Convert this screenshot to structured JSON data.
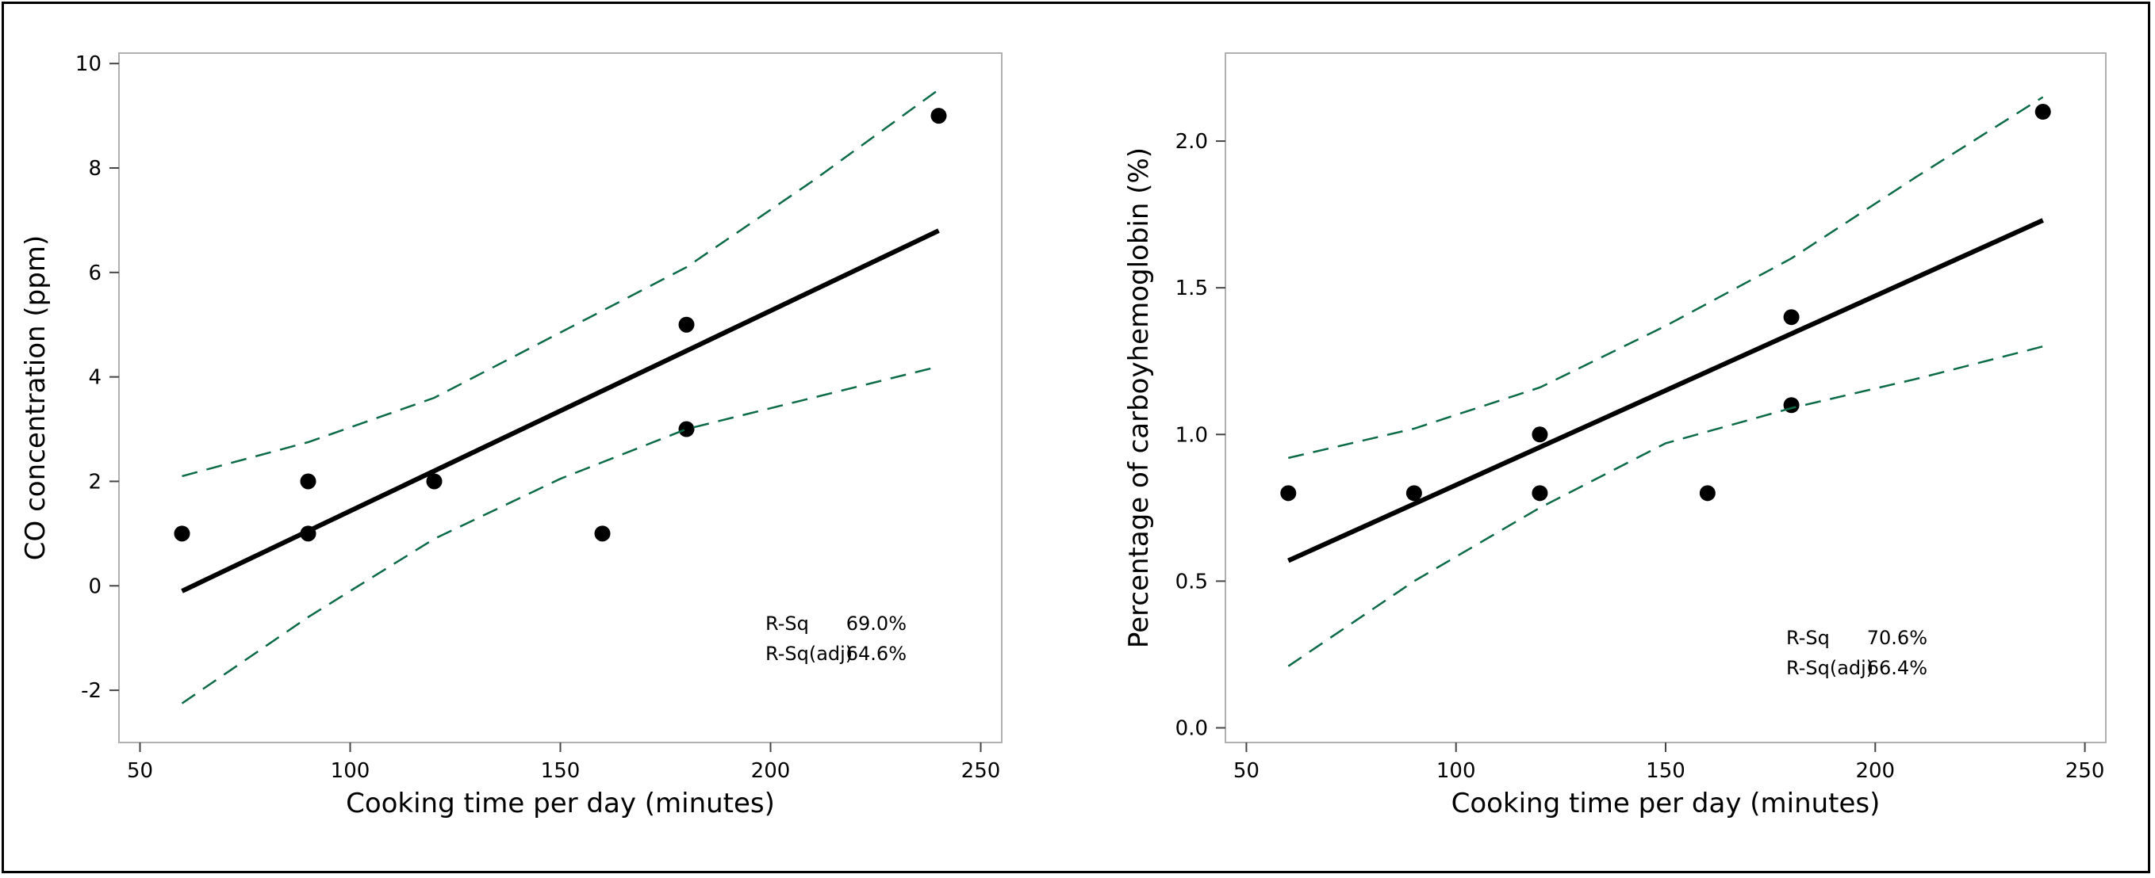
{
  "chart_data": [
    {
      "type": "scatter",
      "xlabel": "Cooking time per day (minutes)",
      "ylabel": "CO concentration (ppm)",
      "xlim": [
        45,
        255
      ],
      "ylim": [
        -3,
        10.2
      ],
      "xticks": [
        50,
        100,
        150,
        200,
        250
      ],
      "yticks": [
        -2,
        0,
        2,
        4,
        6,
        8,
        10
      ],
      "series": [
        {
          "type": "scatter",
          "x": [
            60,
            90,
            90,
            120,
            160,
            180,
            180,
            240
          ],
          "y": [
            1,
            1,
            2,
            2,
            1,
            3,
            5,
            9
          ]
        },
        {
          "type": "fit",
          "x": [
            60,
            240
          ],
          "y": [
            -0.1,
            6.8
          ]
        },
        {
          "type": "ci_upper",
          "x": [
            60,
            90,
            120,
            150,
            180,
            210,
            240
          ],
          "y": [
            2.1,
            2.75,
            3.6,
            4.85,
            6.1,
            7.75,
            9.5
          ]
        },
        {
          "type": "ci_lower",
          "x": [
            60,
            90,
            120,
            150,
            180,
            210,
            240
          ],
          "y": [
            -2.25,
            -0.6,
            0.9,
            2.05,
            3.0,
            3.6,
            4.2
          ]
        }
      ],
      "stats": [
        {
          "label": "R-Sq",
          "value": "69.0%"
        },
        {
          "label": "R-Sq(adj)",
          "value": "64.6%"
        }
      ],
      "grid": false
    },
    {
      "type": "scatter",
      "xlabel": "Cooking time per day (minutes)",
      "ylabel": "Percentage of carboyhemoglobin (%)",
      "xlim": [
        45,
        255
      ],
      "ylim": [
        -0.05,
        2.3
      ],
      "xticks": [
        50,
        100,
        150,
        200,
        250
      ],
      "yticks": [
        0.0,
        0.5,
        1.0,
        1.5,
        2.0
      ],
      "ytick_labels": [
        "0.0",
        "0.5",
        "1.0",
        "1.5",
        "2.0"
      ],
      "series": [
        {
          "type": "scatter",
          "x": [
            60,
            90,
            120,
            120,
            160,
            180,
            180,
            240
          ],
          "y": [
            0.8,
            0.8,
            1.0,
            0.8,
            0.8,
            1.1,
            1.4,
            2.1
          ]
        },
        {
          "type": "fit",
          "x": [
            60,
            240
          ],
          "y": [
            0.57,
            1.73
          ]
        },
        {
          "type": "ci_upper",
          "x": [
            60,
            90,
            120,
            150,
            180,
            210,
            240
          ],
          "y": [
            0.92,
            1.02,
            1.16,
            1.37,
            1.6,
            1.88,
            2.15
          ]
        },
        {
          "type": "ci_lower",
          "x": [
            60,
            90,
            120,
            150,
            180,
            210,
            240
          ],
          "y": [
            0.21,
            0.5,
            0.75,
            0.97,
            1.09,
            1.19,
            1.3
          ]
        }
      ],
      "stats": [
        {
          "label": "R-Sq",
          "value": "70.6%"
        },
        {
          "label": "R-Sq(adj)",
          "value": "66.4%"
        }
      ],
      "grid": false
    }
  ]
}
